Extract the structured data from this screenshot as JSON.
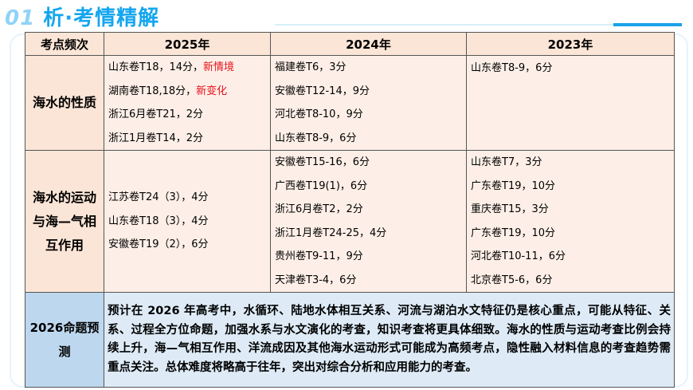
{
  "header": {
    "number": "01",
    "title": "析·考情精解"
  },
  "table": {
    "columns": [
      "考点频次",
      "2025年",
      "2024年",
      "2023年"
    ],
    "rows": [
      {
        "topic": "海水的性质",
        "y2025": [
          {
            "text": "山东卷T18，14分，",
            "tag": "新情境"
          },
          {
            "text": "湖南卷T18,18分，",
            "tag": "新变化"
          },
          {
            "text": "浙江6月卷T21，2分"
          },
          {
            "text": "浙江1月卷T14，2分"
          }
        ],
        "y2024": [
          "福建卷T6，3分",
          "安徽卷T12-14，9分",
          "河北卷T8-10，9分",
          "山东卷T8-9，6分"
        ],
        "y2023": [
          "山东卷T8-9，6分"
        ]
      },
      {
        "topic": "海水的运动与海—气相互作用",
        "y2025": [
          "江苏卷T24（3），4分",
          "山东卷T18（3），4分",
          "安徽卷T19（2），6分"
        ],
        "y2024": [
          "安徽卷T15-16，6分",
          "广西卷T19(1)，6分",
          "浙江6月卷T2，2分",
          "浙江1月卷T24-25，4分",
          "贵州卷T9-11，9分",
          "天津卷T3-4，6分"
        ],
        "y2023": [
          "山东卷T7，3分",
          "广东卷T19，10分",
          "重庆卷T15，3分",
          "广东卷T19，10分",
          "河北卷T10-11，6分",
          "北京卷T5-6，6分"
        ]
      }
    ],
    "prediction": {
      "label": "2026命题预测",
      "text": "预计在 2026 年高考中，水循环、陆地水体相互关系、河流与湖泊水文特征仍是核心重点，可能从特征、关系、过程全方位命题，加强水系与水文演化的考查，知识考查将更具体细致。海水的性质与运动考查比例会持续上升，海—气相互作用、洋流成因及其他海水运动形式可能成为高频考点，隐性融入材料信息的考查趋势需重点关注。总体难度将略高于往年，突出对综合分析和应用能力的考查。"
    }
  }
}
